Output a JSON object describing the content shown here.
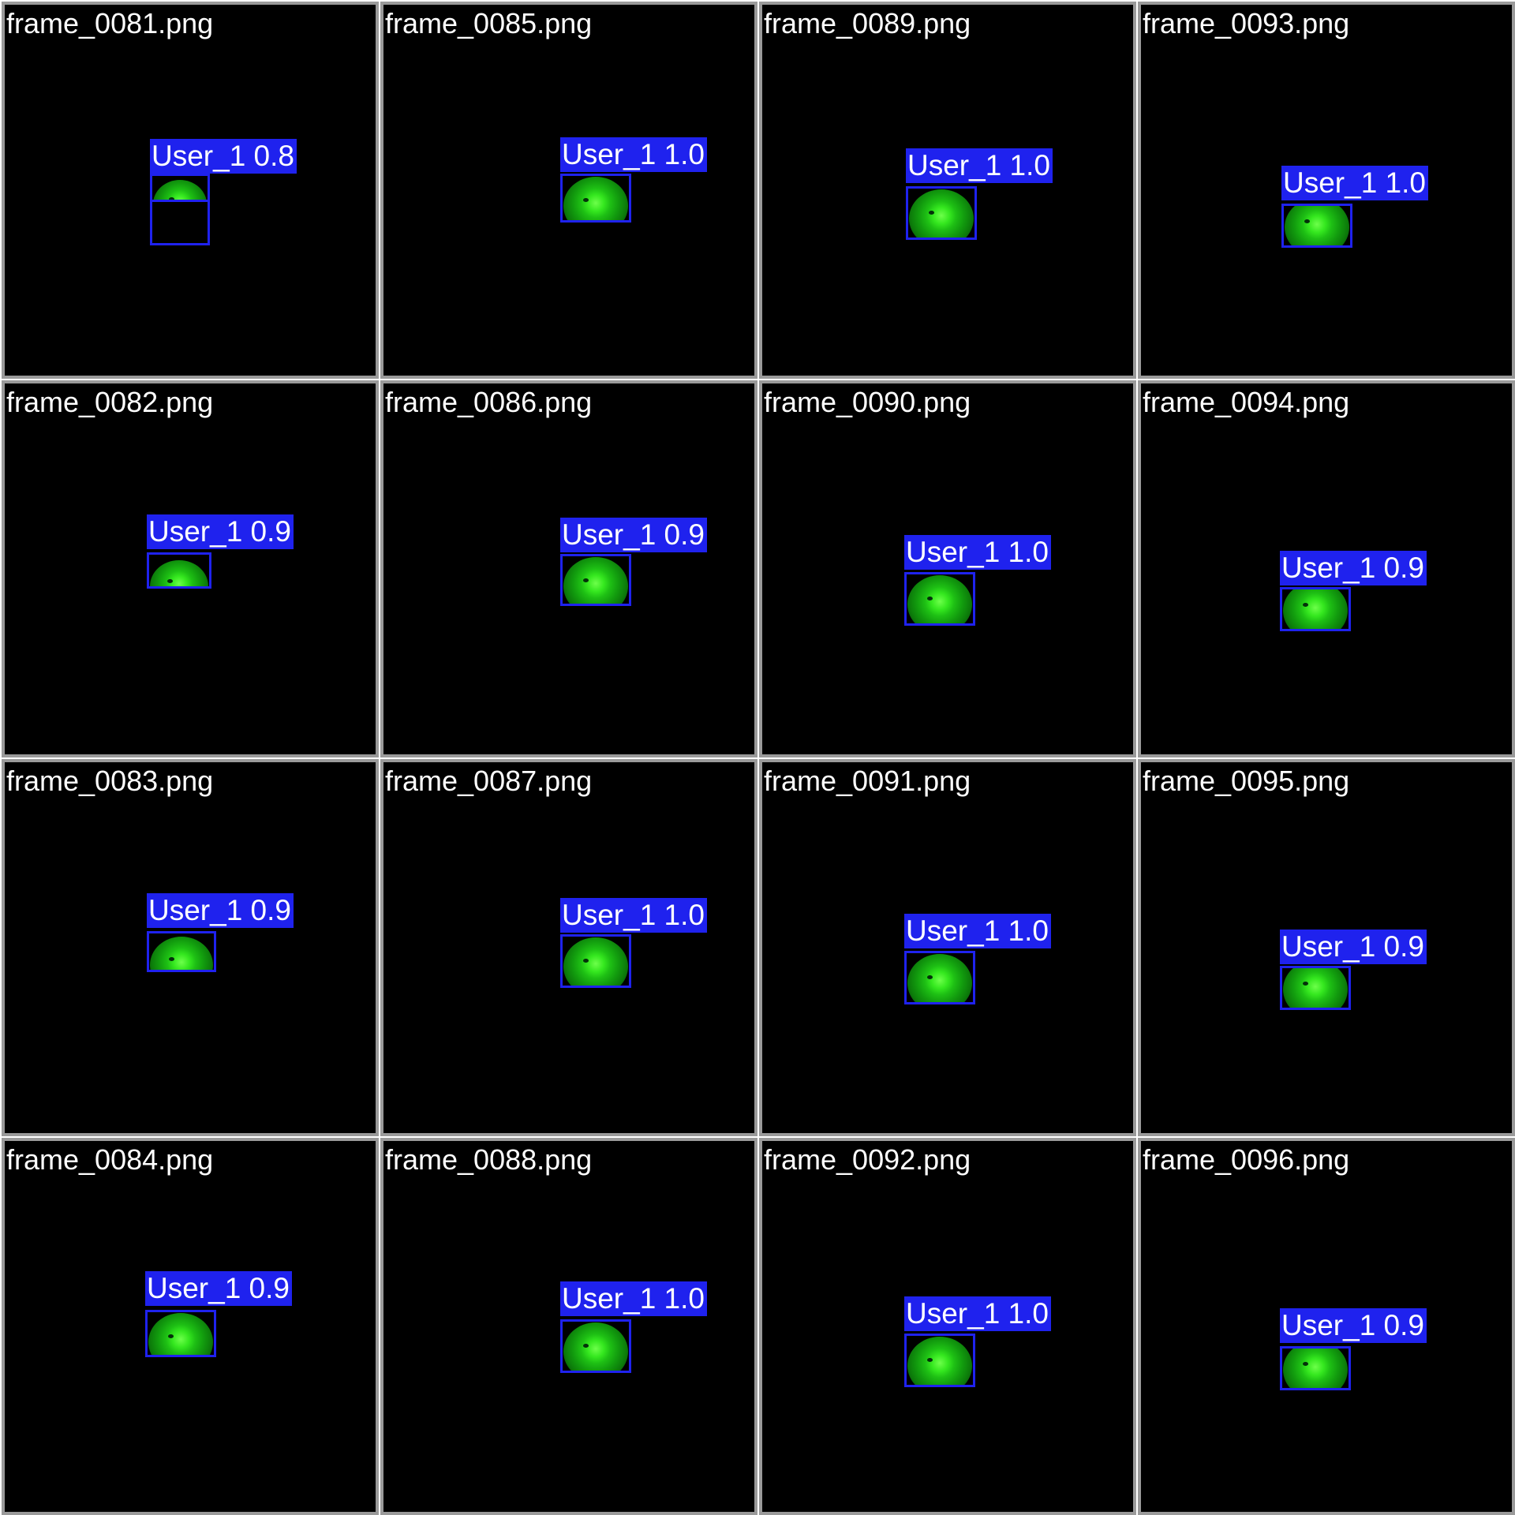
{
  "grid": {
    "columns": 4,
    "rows": 4,
    "tiles": [
      {
        "filename": "frame_0081.png",
        "label": "User_1 0.8",
        "confidence": 0.8,
        "extra_box": true
      },
      {
        "filename": "frame_0082.png",
        "label": "User_1 0.9",
        "confidence": 0.9,
        "extra_box": false
      },
      {
        "filename": "frame_0083.png",
        "label": "User_1 0.9",
        "confidence": 0.9,
        "extra_box": false
      },
      {
        "filename": "frame_0084.png",
        "label": "User_1 0.9",
        "confidence": 0.9,
        "extra_box": false
      },
      {
        "filename": "frame_0085.png",
        "label": "User_1 1.0",
        "confidence": 1.0,
        "extra_box": false
      },
      {
        "filename": "frame_0086.png",
        "label": "User_1 0.9",
        "confidence": 0.9,
        "extra_box": false
      },
      {
        "filename": "frame_0087.png",
        "label": "User_1 1.0",
        "confidence": 1.0,
        "extra_box": false
      },
      {
        "filename": "frame_0088.png",
        "label": "User_1 1.0",
        "confidence": 1.0,
        "extra_box": false
      },
      {
        "filename": "frame_0089.png",
        "label": "User_1 1.0",
        "confidence": 1.0,
        "extra_box": false
      },
      {
        "filename": "frame_0090.png",
        "label": "User_1 1.0",
        "confidence": 1.0,
        "extra_box": false
      },
      {
        "filename": "frame_0091.png",
        "label": "User_1 1.0",
        "confidence": 1.0,
        "extra_box": false
      },
      {
        "filename": "frame_0092.png",
        "label": "User_1 1.0",
        "confidence": 1.0,
        "extra_box": false
      },
      {
        "filename": "frame_0093.png",
        "label": "User_1 1.0",
        "confidence": 1.0,
        "extra_box": false
      },
      {
        "filename": "frame_0094.png",
        "label": "User_1 0.9",
        "confidence": 0.9,
        "extra_box": false
      },
      {
        "filename": "frame_0095.png",
        "label": "User_1 0.9",
        "confidence": 0.9,
        "extra_box": false
      },
      {
        "filename": "frame_0096.png",
        "label": "User_1 0.9",
        "confidence": 0.9,
        "extra_box": false
      }
    ]
  },
  "colors": {
    "tile_background": "#000000",
    "tile_border": "#9a9a9a",
    "detection_box": "#1f22ee",
    "label_text": "#ffffff",
    "object": "#1ec014"
  }
}
